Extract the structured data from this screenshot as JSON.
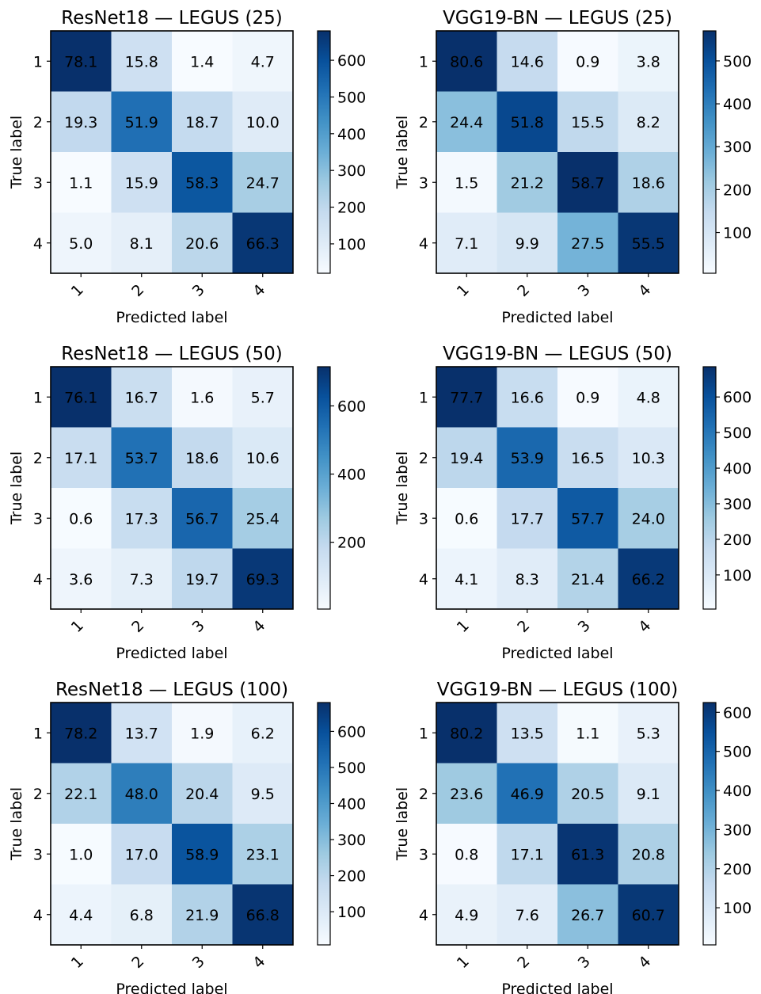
{
  "chart_data": [
    {
      "type": "heatmap",
      "title": "ResNet18 — LEGUS (25)",
      "xlabel": "Predicted label",
      "ylabel": "True label",
      "x_categories": [
        "1",
        "2",
        "3",
        "4"
      ],
      "y_categories": [
        "1",
        "2",
        "3",
        "4"
      ],
      "values": [
        [
          78.1,
          15.8,
          1.4,
          4.7
        ],
        [
          19.3,
          51.9,
          18.7,
          10.0
        ],
        [
          1.1,
          15.9,
          58.3,
          24.7
        ],
        [
          5.0,
          8.1,
          20.6,
          66.3
        ]
      ],
      "cell_labels": [
        [
          "78.1",
          "15.8",
          "1.4",
          "4.7"
        ],
        [
          "19.3",
          "51.9",
          "18.7",
          "10.0"
        ],
        [
          "1.1",
          "15.9",
          "58.3",
          "24.7"
        ],
        [
          "5.0",
          "8.1",
          "20.6",
          "66.3"
        ]
      ],
      "colorbar": {
        "min": 20,
        "max": 680,
        "ticks": [
          100,
          200,
          300,
          400,
          500,
          600
        ],
        "tick_labels": [
          "100",
          "200",
          "300",
          "400",
          "500",
          "600"
        ]
      }
    },
    {
      "type": "heatmap",
      "title": "VGG19-BN — LEGUS (25)",
      "xlabel": "Predicted label",
      "ylabel": "True label",
      "x_categories": [
        "1",
        "2",
        "3",
        "4"
      ],
      "y_categories": [
        "1",
        "2",
        "3",
        "4"
      ],
      "values": [
        [
          80.6,
          14.6,
          0.9,
          3.8
        ],
        [
          24.4,
          51.8,
          15.5,
          8.2
        ],
        [
          1.5,
          21.2,
          58.7,
          18.6
        ],
        [
          7.1,
          9.9,
          27.5,
          55.5
        ]
      ],
      "cell_labels": [
        [
          "80.6",
          "14.6",
          "0.9",
          "3.8"
        ],
        [
          "24.4",
          "51.8",
          "15.5",
          "8.2"
        ],
        [
          "1.5",
          "21.2",
          "58.7",
          "18.6"
        ],
        [
          "7.1",
          "9.9",
          "27.5",
          "55.5"
        ]
      ],
      "colorbar": {
        "min": 5,
        "max": 570,
        "ticks": [
          100,
          200,
          300,
          400,
          500
        ],
        "tick_labels": [
          "100",
          "200",
          "300",
          "400",
          "500"
        ]
      }
    },
    {
      "type": "heatmap",
      "title": "ResNet18 — LEGUS (50)",
      "xlabel": "Predicted label",
      "ylabel": "True label",
      "x_categories": [
        "1",
        "2",
        "3",
        "4"
      ],
      "y_categories": [
        "1",
        "2",
        "3",
        "4"
      ],
      "values": [
        [
          76.1,
          16.7,
          1.6,
          5.7
        ],
        [
          17.1,
          53.7,
          18.6,
          10.6
        ],
        [
          0.6,
          17.3,
          56.7,
          25.4
        ],
        [
          3.6,
          7.3,
          19.7,
          69.3
        ]
      ],
      "cell_labels": [
        [
          "76.1",
          "16.7",
          "1.6",
          "5.7"
        ],
        [
          "17.1",
          "53.7",
          "18.6",
          "10.6"
        ],
        [
          "0.6",
          "17.3",
          "56.7",
          "25.4"
        ],
        [
          "3.6",
          "7.3",
          "19.7",
          "69.3"
        ]
      ],
      "colorbar": {
        "min": 4,
        "max": 715,
        "ticks": [
          200,
          400,
          600
        ],
        "tick_labels": [
          "200",
          "400",
          "600"
        ]
      }
    },
    {
      "type": "heatmap",
      "title": "VGG19-BN — LEGUS (50)",
      "xlabel": "Predicted label",
      "ylabel": "True label",
      "x_categories": [
        "1",
        "2",
        "3",
        "4"
      ],
      "y_categories": [
        "1",
        "2",
        "3",
        "4"
      ],
      "values": [
        [
          77.7,
          16.6,
          0.9,
          4.8
        ],
        [
          19.4,
          53.9,
          16.5,
          10.3
        ],
        [
          0.6,
          17.7,
          57.7,
          24.0
        ],
        [
          4.1,
          8.3,
          21.4,
          66.2
        ]
      ],
      "cell_labels": [
        [
          "77.7",
          "16.6",
          "0.9",
          "4.8"
        ],
        [
          "19.4",
          "53.9",
          "16.5",
          "10.3"
        ],
        [
          "0.6",
          "17.7",
          "57.7",
          "24.0"
        ],
        [
          "4.1",
          "8.3",
          "21.4",
          "66.2"
        ]
      ],
      "colorbar": {
        "min": 4,
        "max": 685,
        "ticks": [
          100,
          200,
          300,
          400,
          500,
          600
        ],
        "tick_labels": [
          "100",
          "200",
          "300",
          "400",
          "500",
          "600"
        ]
      }
    },
    {
      "type": "heatmap",
      "title": "ResNet18 — LEGUS (100)",
      "xlabel": "Predicted label",
      "ylabel": "True label",
      "x_categories": [
        "1",
        "2",
        "3",
        "4"
      ],
      "y_categories": [
        "1",
        "2",
        "3",
        "4"
      ],
      "values": [
        [
          78.2,
          13.7,
          1.9,
          6.2
        ],
        [
          22.1,
          48.0,
          20.4,
          9.5
        ],
        [
          1.0,
          17.0,
          58.9,
          23.1
        ],
        [
          4.4,
          6.8,
          21.9,
          66.8
        ]
      ],
      "cell_labels": [
        [
          "78.2",
          "13.7",
          "1.9",
          "6.2"
        ],
        [
          "22.1",
          "48.0",
          "20.4",
          "9.5"
        ],
        [
          "1.0",
          "17.0",
          "58.9",
          "23.1"
        ],
        [
          "4.4",
          "6.8",
          "21.9",
          "66.8"
        ]
      ],
      "colorbar": {
        "min": 8,
        "max": 680,
        "ticks": [
          100,
          200,
          300,
          400,
          500,
          600
        ],
        "tick_labels": [
          "100",
          "200",
          "300",
          "400",
          "500",
          "600"
        ]
      }
    },
    {
      "type": "heatmap",
      "title": "VGG19-BN — LEGUS (100)",
      "xlabel": "Predicted label",
      "ylabel": "True label",
      "x_categories": [
        "1",
        "2",
        "3",
        "4"
      ],
      "y_categories": [
        "1",
        "2",
        "3",
        "4"
      ],
      "values": [
        [
          80.2,
          13.5,
          1.1,
          5.3
        ],
        [
          23.6,
          46.9,
          20.5,
          9.1
        ],
        [
          0.8,
          17.1,
          61.3,
          20.8
        ],
        [
          4.9,
          7.6,
          26.7,
          60.7
        ]
      ],
      "cell_labels": [
        [
          "80.2",
          "13.5",
          "1.1",
          "5.3"
        ],
        [
          "23.6",
          "46.9",
          "20.5",
          "9.1"
        ],
        [
          "0.8",
          "17.1",
          "61.3",
          "20.8"
        ],
        [
          "4.9",
          "7.6",
          "26.7",
          "60.7"
        ]
      ],
      "colorbar": {
        "min": 5,
        "max": 625,
        "ticks": [
          100,
          200,
          300,
          400,
          500,
          600
        ],
        "tick_labels": [
          "100",
          "200",
          "300",
          "400",
          "500",
          "600"
        ]
      }
    }
  ],
  "colors": {
    "colormap": "Blues",
    "stops": [
      "#f7fbff",
      "#deebf7",
      "#c6dbef",
      "#9ecae1",
      "#6baed6",
      "#4292c6",
      "#2171b5",
      "#08519c",
      "#08306b"
    ],
    "text_dark": "#000000",
    "text_light": "#ffffff"
  }
}
